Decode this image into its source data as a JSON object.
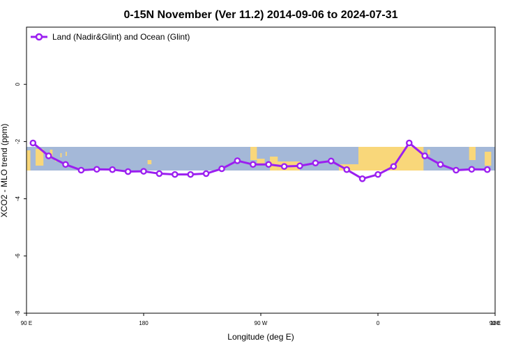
{
  "chart_data": {
    "type": "line",
    "title": "0-15N November (Ver 11.2)   2014-09-06 to 2024-07-31",
    "xlabel": "Longitude (deg E)",
    "ylabel": "XCO2 - MLO trend (ppm)",
    "x_ticks": [
      "90 E",
      "180",
      "90 W",
      "0",
      "90 E",
      "180"
    ],
    "y_ticks": [
      "0",
      "-2",
      "-4",
      "-6",
      "-8"
    ],
    "x_range_deg_e": [
      90,
      450
    ],
    "ylim": [
      -8,
      2
    ],
    "grid": false,
    "legend_position": "top-left",
    "background_map": "land/ocean strip, 0-15N",
    "series": [
      {
        "name": "Land (Nadir&Glint) and Ocean (Glint)",
        "color": "#9b1ff0",
        "x": [
          95,
          107,
          120,
          132,
          144,
          156,
          168,
          180,
          192,
          204,
          216,
          228,
          240,
          252,
          264,
          276,
          288,
          300,
          312,
          324,
          336,
          348,
          360,
          372,
          384,
          396,
          408,
          420,
          432,
          444
        ],
        "y": [
          -2.05,
          -2.5,
          -2.8,
          -3.0,
          -2.97,
          -2.98,
          -3.05,
          -3.04,
          -3.12,
          -3.15,
          -3.15,
          -3.12,
          -2.95,
          -2.67,
          -2.8,
          -2.8,
          -2.87,
          -2.85,
          -2.75,
          -2.68,
          -2.98,
          -3.3,
          -3.15,
          -2.87,
          -2.05,
          -2.5,
          -2.8,
          -3.0,
          -2.97,
          -2.98
        ]
      }
    ]
  },
  "colors": {
    "ocean": "#a4b8d8",
    "land": "#f9d77a",
    "series": "#9b1ff0"
  }
}
